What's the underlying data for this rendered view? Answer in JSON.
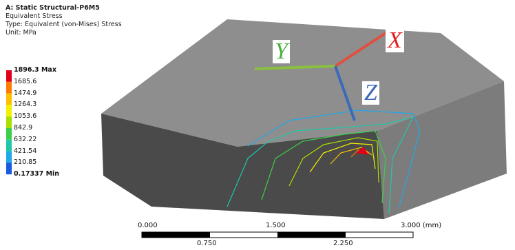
{
  "header": {
    "title": "A: Static Structural-P6M5",
    "result": "Equivalent Stress",
    "type": "Type: Equivalent (von-Mises) Stress",
    "unit": "Unit: MPa"
  },
  "legend": {
    "labels": [
      "1896.3 Max",
      "1685.6",
      "1474.9",
      "1264.3",
      "1053.6",
      "842.9",
      "632.22",
      "421.54",
      "210.85",
      "0.17337 Min"
    ],
    "colors": [
      "#e0001a",
      "#ff7a00",
      "#ffc000",
      "#f2f200",
      "#a8e000",
      "#3ad04a",
      "#20c8a8",
      "#20a8e8",
      "#1a5ae0"
    ]
  },
  "axes": {
    "x": "X",
    "y": "Y",
    "z": "Z"
  },
  "scale": {
    "top": [
      "0.000",
      "1.500",
      "3.000 (mm)"
    ],
    "bottom": [
      "0.750",
      "2.250"
    ]
  }
}
